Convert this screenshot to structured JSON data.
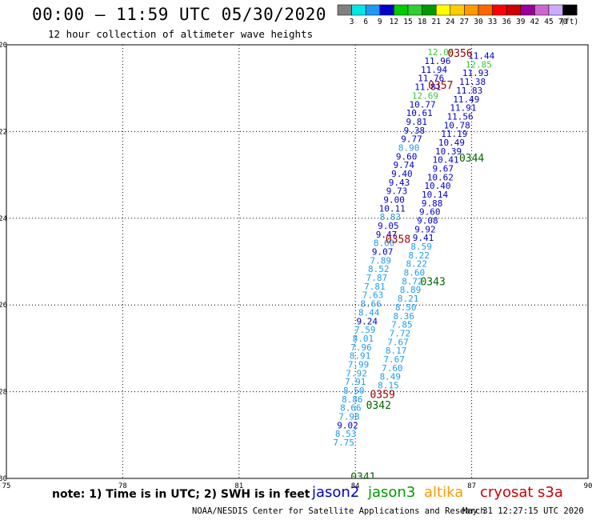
{
  "title": "00:00 — 11:59 UTC 05/30/2020",
  "subtitle": "12 hour collection of altimeter wave heights",
  "note": "note:  1) Time is in UTC;  2) SWH is in feet",
  "credit": "NOAA/NESDIS Center for Satellite Applications and Research",
  "stamp": "May 31 12:27:15 UTC 2020",
  "satellites": [
    {
      "name": "jason2",
      "color": "#0000cc"
    },
    {
      "name": "jason3",
      "color": "#009900"
    },
    {
      "name": "altika",
      "color": "#ff9900"
    },
    {
      "name": "cryosat",
      "color": "#cc0000"
    },
    {
      "name": "s3a",
      "color": "#cc0000"
    }
  ],
  "colorbar": {
    "unit": "(ft)",
    "labels": [
      "3",
      "6",
      "9",
      "12",
      "15",
      "18",
      "21",
      "24",
      "27",
      "30",
      "33",
      "36",
      "39",
      "42",
      "45",
      "70"
    ],
    "colors": [
      "#808080",
      "#00e6e6",
      "#1e9bf0",
      "#0000cc",
      "#00cc00",
      "#33cc33",
      "#009900",
      "#ffff00",
      "#ffcc00",
      "#ff9900",
      "#ff6600",
      "#ff0000",
      "#cc0000",
      "#990099",
      "#cc66cc",
      "#ccaaff",
      "#000000"
    ]
  },
  "chart_data": {
    "type": "scatter",
    "title": "00:00 — 11:59 UTC 05/30/2020",
    "xlabel": "",
    "ylabel": "",
    "xlim": [
      75,
      90
    ],
    "ylim": [
      -30,
      -20
    ],
    "xticks": [
      "75",
      "78",
      "81",
      "84",
      "87",
      "90"
    ],
    "yticks": [
      "-20",
      "-22",
      "-24",
      "-26",
      "-28",
      "-30"
    ],
    "grid": "dotted",
    "series": [
      {
        "name": "jason2",
        "points": [
          [
            86.2,
            -20.17,
            "12.05"
          ],
          [
            86.12,
            -20.37,
            "11.96"
          ],
          [
            86.03,
            -20.57,
            "11.94"
          ],
          [
            85.95,
            -20.77,
            "11.76"
          ],
          [
            85.87,
            -20.97,
            "11.81"
          ],
          [
            85.8,
            -21.17,
            "12.69"
          ],
          [
            85.73,
            -21.37,
            "10.77"
          ],
          [
            85.65,
            -21.57,
            "10.61"
          ],
          [
            85.58,
            -21.77,
            "9.81"
          ],
          [
            85.52,
            -21.97,
            "9.38"
          ],
          [
            85.45,
            -22.17,
            "9.77"
          ],
          [
            85.38,
            -22.37,
            "8.90"
          ],
          [
            85.32,
            -22.57,
            "9.60"
          ],
          [
            85.25,
            -22.77,
            "9.74"
          ],
          [
            85.2,
            -22.97,
            "9.40"
          ],
          [
            85.13,
            -23.17,
            "9.43"
          ],
          [
            85.07,
            -23.37,
            "9.73"
          ],
          [
            85.0,
            -23.57,
            "9.00"
          ],
          [
            84.95,
            -23.77,
            "10.11"
          ],
          [
            84.9,
            -23.97,
            "8.83"
          ],
          [
            84.85,
            -24.17,
            "9.05"
          ],
          [
            84.8,
            -24.37,
            "9.47"
          ],
          [
            84.74,
            -24.57,
            "8.60"
          ],
          [
            84.7,
            -24.77,
            "9.07"
          ],
          [
            84.65,
            -24.97,
            "7.89"
          ],
          [
            84.6,
            -25.17,
            "8.52"
          ],
          [
            84.55,
            -25.37,
            "7.87"
          ],
          [
            84.5,
            -25.57,
            "7.81"
          ],
          [
            84.45,
            -25.77,
            "7.63"
          ],
          [
            84.4,
            -25.97,
            "8.66"
          ],
          [
            84.35,
            -26.17,
            "8.44"
          ],
          [
            84.3,
            -26.37,
            "9.24"
          ],
          [
            84.25,
            -26.57,
            "7.59"
          ],
          [
            84.2,
            -26.77,
            "8.01"
          ],
          [
            84.15,
            -26.97,
            "7.96"
          ],
          [
            84.12,
            -27.17,
            "8.91"
          ],
          [
            84.08,
            -27.37,
            "7.99"
          ],
          [
            84.03,
            -27.57,
            "7.92"
          ],
          [
            84.0,
            -27.77,
            "7.91"
          ],
          [
            83.96,
            -27.97,
            "8.50"
          ],
          [
            83.92,
            -28.17,
            "8.86"
          ],
          [
            83.88,
            -28.37,
            "8.66"
          ],
          [
            83.84,
            -28.57,
            "7.98"
          ],
          [
            83.8,
            -28.77,
            "9.02"
          ],
          [
            83.75,
            -28.97,
            "8.53"
          ],
          [
            83.7,
            -29.17,
            "7.75"
          ]
        ]
      },
      {
        "name": "jason3",
        "points": [
          [
            87.25,
            -20.25,
            "11.44"
          ],
          [
            87.18,
            -20.45,
            "12.85"
          ],
          [
            87.1,
            -20.65,
            "11.93"
          ],
          [
            87.02,
            -20.85,
            "11.38"
          ],
          [
            86.94,
            -21.05,
            "11.83"
          ],
          [
            86.86,
            -21.25,
            "11.49"
          ],
          [
            86.78,
            -21.45,
            "11.91"
          ],
          [
            86.7,
            -21.65,
            "11.56"
          ],
          [
            86.62,
            -21.85,
            "10.78"
          ],
          [
            86.55,
            -22.05,
            "11.19"
          ],
          [
            86.48,
            -22.25,
            "10.49"
          ],
          [
            86.4,
            -22.45,
            "10.39"
          ],
          [
            86.33,
            -22.65,
            "10.41"
          ],
          [
            86.26,
            -22.85,
            "9.67"
          ],
          [
            86.19,
            -23.05,
            "10.62"
          ],
          [
            86.12,
            -23.25,
            "10.40"
          ],
          [
            86.05,
            -23.45,
            "10.14"
          ],
          [
            85.98,
            -23.65,
            "9.88"
          ],
          [
            85.92,
            -23.85,
            "9.60"
          ],
          [
            85.86,
            -24.05,
            "9.08"
          ],
          [
            85.8,
            -24.25,
            "9.92"
          ],
          [
            85.75,
            -24.45,
            "9.41"
          ],
          [
            85.7,
            -24.65,
            "8.59"
          ],
          [
            85.64,
            -24.85,
            "8.22"
          ],
          [
            85.58,
            -25.05,
            "8.22"
          ],
          [
            85.52,
            -25.25,
            "8.60"
          ],
          [
            85.47,
            -25.45,
            "8.72"
          ],
          [
            85.42,
            -25.65,
            "8.89"
          ],
          [
            85.36,
            -25.85,
            "8.21"
          ],
          [
            85.3,
            -26.05,
            "8.50"
          ],
          [
            85.25,
            -26.25,
            "8.36"
          ],
          [
            85.2,
            -26.45,
            "7.85"
          ],
          [
            85.15,
            -26.65,
            "7.72"
          ],
          [
            85.1,
            -26.85,
            "7.67"
          ],
          [
            85.05,
            -27.05,
            "8.17"
          ],
          [
            85.0,
            -27.25,
            "7.67"
          ],
          [
            84.95,
            -27.45,
            "7.60"
          ],
          [
            84.9,
            -27.65,
            "8.49"
          ],
          [
            84.85,
            -27.85,
            "8.15"
          ]
        ]
      }
    ],
    "passes": [
      {
        "label": "0356",
        "x": 86.7,
        "y": -20.18
      },
      {
        "label": "0357",
        "x": 86.2,
        "y": -20.92
      },
      {
        "label": "0344",
        "x": 87.0,
        "y": -22.6
      },
      {
        "label": "0358",
        "x": 85.1,
        "y": -24.47
      },
      {
        "label": "0343",
        "x": 86.0,
        "y": -25.45
      },
      {
        "label": "0359",
        "x": 84.7,
        "y": -28.05
      },
      {
        "label": "0342",
        "x": 84.6,
        "y": -28.3
      },
      {
        "label": "0341",
        "x": 84.2,
        "y": -29.95
      }
    ]
  }
}
